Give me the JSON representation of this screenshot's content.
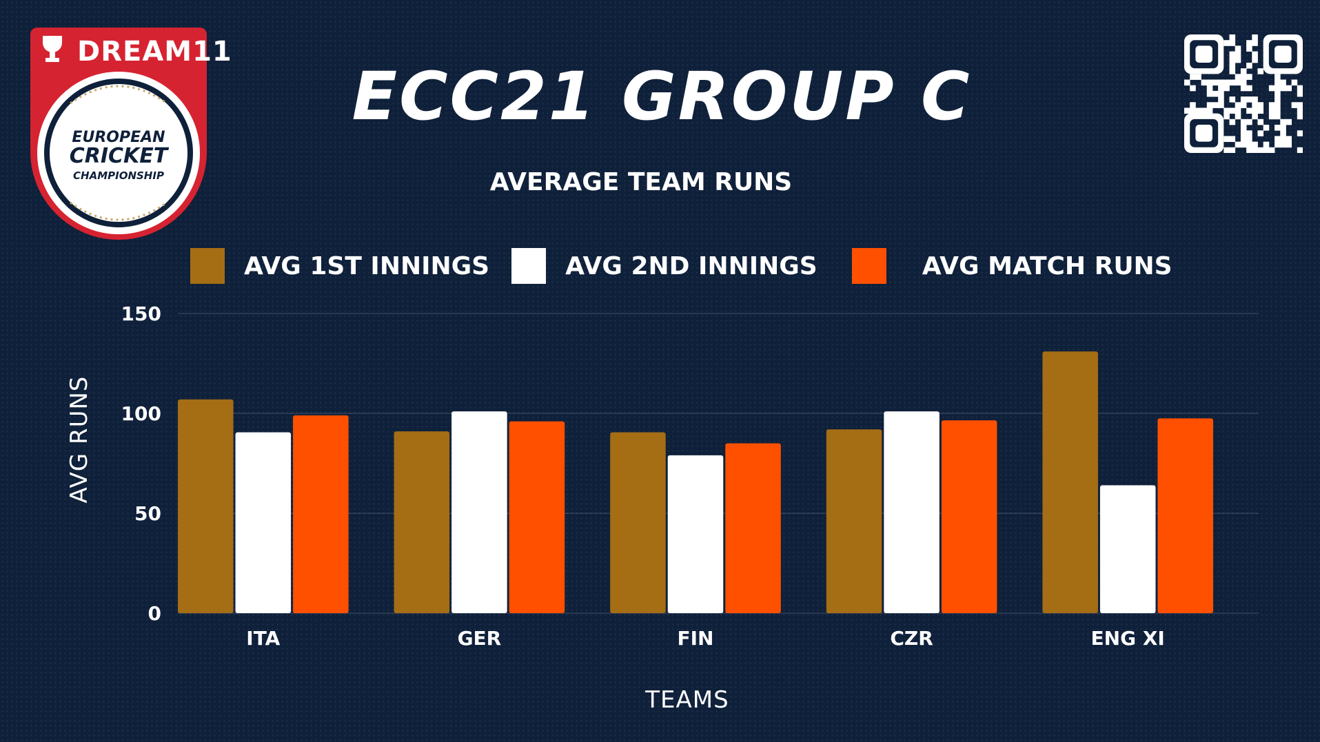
{
  "brand": {
    "name": "DREAM11"
  },
  "badge": {
    "line1": "EUROPEAN",
    "line2": "CRICKET",
    "line3": "CHAMPIONSHIP"
  },
  "header": {
    "title": "ECC21 GROUP C"
  },
  "colors": {
    "background": "#0f203a",
    "first_innings": "#a56d14",
    "second_innings": "#ffffff",
    "match_runs": "#ff5000",
    "badge_red": "#d62331"
  },
  "chart_data": {
    "type": "bar",
    "title": "AVERAGE TEAM RUNS",
    "xlabel": "TEAMS",
    "ylabel": "AVG RUNS",
    "ylim": [
      0,
      150
    ],
    "yticks": [
      0,
      50,
      100,
      150
    ],
    "grid": true,
    "legend_position": "top",
    "categories": [
      "ITA",
      "GER",
      "FIN",
      "CZR",
      "ENG XI"
    ],
    "series": [
      {
        "name": "AVG 1ST INNINGS",
        "color": "#a56d14",
        "values": [
          107,
          91,
          90.5,
          92,
          131
        ]
      },
      {
        "name": "AVG 2ND INNINGS",
        "color": "#ffffff",
        "values": [
          90.5,
          101,
          79,
          101,
          64
        ]
      },
      {
        "name": "AVG MATCH RUNS",
        "color": "#ff5000",
        "values": [
          99,
          96,
          85,
          96.5,
          97.5
        ]
      }
    ]
  }
}
